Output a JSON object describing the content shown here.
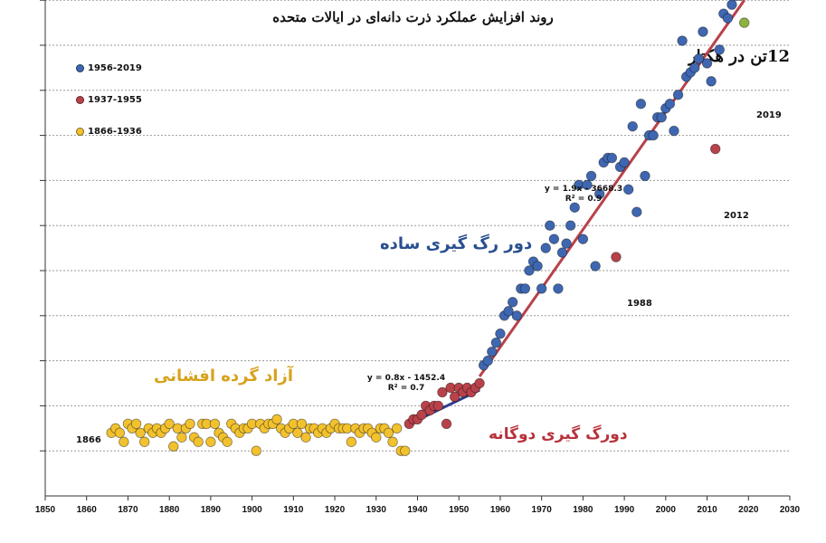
{
  "title": "روند افزایش عملکرد ذرت دانه‌ای در ایالات متحده",
  "unit_label": "12تن در هکتار",
  "legend": [
    {
      "label": "1956-2019",
      "color": "#3f67b1"
    },
    {
      "label": "1937-1955",
      "color": "#b8424a"
    },
    {
      "label": "1866-1936",
      "color": "#f2c12e"
    }
  ],
  "annotations": {
    "start_year": "1866",
    "point_1988": "1988",
    "point_2012": "2012",
    "point_2019": "2019",
    "open_pollination": "آزاد گرده افشانی",
    "double_cross": "دورگ گیری دوگانه",
    "single_cross": "دور رگ گیری ساده",
    "eq1_line1": "y = 0.8x - 1452.4",
    "eq1_line2": "R² = 0.7",
    "eq2_line1": "y = 1.9x - 3668.3",
    "eq2_line2": "R² = 0.9"
  },
  "chart_data": {
    "type": "scatter",
    "title": "روند افزایش عملکرد ذرت دانه‌ای در ایالات متحده",
    "xlabel": "",
    "ylabel": "تن در هکتار",
    "xlim": [
      1850,
      2030
    ],
    "ylim": [
      0,
      12
    ],
    "x_ticks": [
      1850,
      1860,
      1870,
      1880,
      1890,
      1900,
      1910,
      1920,
      1930,
      1940,
      1950,
      1960,
      1970,
      1980,
      1990,
      2000,
      2010,
      2020,
      2030
    ],
    "y_gridlines": [
      1,
      2,
      3,
      4,
      5,
      6,
      7,
      8,
      9,
      10,
      11,
      12
    ],
    "grid": true,
    "legend_position": "top-left",
    "series": [
      {
        "name": "1866-1936",
        "color": "#f2c12e",
        "points": [
          [
            1866,
            1.4
          ],
          [
            1867,
            1.5
          ],
          [
            1868,
            1.4
          ],
          [
            1869,
            1.2
          ],
          [
            1870,
            1.6
          ],
          [
            1871,
            1.5
          ],
          [
            1872,
            1.6
          ],
          [
            1873,
            1.4
          ],
          [
            1874,
            1.2
          ],
          [
            1875,
            1.5
          ],
          [
            1876,
            1.4
          ],
          [
            1877,
            1.5
          ],
          [
            1878,
            1.4
          ],
          [
            1879,
            1.5
          ],
          [
            1880,
            1.6
          ],
          [
            1881,
            1.1
          ],
          [
            1882,
            1.5
          ],
          [
            1883,
            1.3
          ],
          [
            1884,
            1.5
          ],
          [
            1885,
            1.6
          ],
          [
            1886,
            1.3
          ],
          [
            1887,
            1.2
          ],
          [
            1888,
            1.6
          ],
          [
            1889,
            1.6
          ],
          [
            1890,
            1.2
          ],
          [
            1891,
            1.6
          ],
          [
            1892,
            1.4
          ],
          [
            1893,
            1.3
          ],
          [
            1894,
            1.2
          ],
          [
            1895,
            1.6
          ],
          [
            1896,
            1.5
          ],
          [
            1897,
            1.4
          ],
          [
            1898,
            1.5
          ],
          [
            1899,
            1.5
          ],
          [
            1900,
            1.6
          ],
          [
            1901,
            1.0
          ],
          [
            1902,
            1.6
          ],
          [
            1903,
            1.5
          ],
          [
            1904,
            1.6
          ],
          [
            1905,
            1.6
          ],
          [
            1906,
            1.7
          ],
          [
            1907,
            1.5
          ],
          [
            1908,
            1.4
          ],
          [
            1909,
            1.5
          ],
          [
            1910,
            1.6
          ],
          [
            1911,
            1.4
          ],
          [
            1912,
            1.6
          ],
          [
            1913,
            1.3
          ],
          [
            1914,
            1.5
          ],
          [
            1915,
            1.5
          ],
          [
            1916,
            1.4
          ],
          [
            1917,
            1.5
          ],
          [
            1918,
            1.4
          ],
          [
            1919,
            1.5
          ],
          [
            1920,
            1.6
          ],
          [
            1921,
            1.5
          ],
          [
            1922,
            1.5
          ],
          [
            1923,
            1.5
          ],
          [
            1924,
            1.2
          ],
          [
            1925,
            1.5
          ],
          [
            1926,
            1.4
          ],
          [
            1927,
            1.5
          ],
          [
            1928,
            1.5
          ],
          [
            1929,
            1.4
          ],
          [
            1930,
            1.3
          ],
          [
            1931,
            1.5
          ],
          [
            1932,
            1.5
          ],
          [
            1933,
            1.4
          ],
          [
            1934,
            1.2
          ],
          [
            1935,
            1.5
          ],
          [
            1936,
            1.0
          ],
          [
            1937,
            1.0
          ]
        ],
        "y_unit": "t/ha"
      },
      {
        "name": "1937-1955",
        "color": "#b8424a",
        "points": [
          [
            1938,
            1.6
          ],
          [
            1939,
            1.7
          ],
          [
            1940,
            1.7
          ],
          [
            1941,
            1.8
          ],
          [
            1942,
            2.0
          ],
          [
            1943,
            1.9
          ],
          [
            1944,
            2.0
          ],
          [
            1945,
            2.0
          ],
          [
            1946,
            2.3
          ],
          [
            1947,
            1.6
          ],
          [
            1948,
            2.4
          ],
          [
            1949,
            2.2
          ],
          [
            1950,
            2.4
          ],
          [
            1951,
            2.3
          ],
          [
            1952,
            2.4
          ],
          [
            1953,
            2.3
          ],
          [
            1954,
            2.4
          ],
          [
            1955,
            2.5
          ]
        ],
        "y_unit": "t/ha"
      },
      {
        "name": "1956-2019",
        "color": "#3f67b1",
        "points": [
          [
            1956,
            2.9
          ],
          [
            1957,
            3.0
          ],
          [
            1958,
            3.2
          ],
          [
            1959,
            3.4
          ],
          [
            1960,
            3.6
          ],
          [
            1961,
            4.0
          ],
          [
            1962,
            4.1
          ],
          [
            1963,
            4.3
          ],
          [
            1964,
            4.0
          ],
          [
            1965,
            4.6
          ],
          [
            1966,
            4.6
          ],
          [
            1967,
            5.0
          ],
          [
            1968,
            5.2
          ],
          [
            1969,
            5.1
          ],
          [
            1970,
            4.6
          ],
          [
            1971,
            5.5
          ],
          [
            1972,
            6.0
          ],
          [
            1973,
            5.7
          ],
          [
            1974,
            4.6
          ],
          [
            1975,
            5.4
          ],
          [
            1976,
            5.6
          ],
          [
            1977,
            6.0
          ],
          [
            1978,
            6.4
          ],
          [
            1979,
            6.9
          ],
          [
            1980,
            5.7
          ],
          [
            1981,
            6.9
          ],
          [
            1982,
            7.1
          ],
          [
            1983,
            5.1
          ],
          [
            1984,
            6.7
          ],
          [
            1985,
            7.4
          ],
          [
            1986,
            7.5
          ],
          [
            1987,
            7.5
          ],
          [
            1988,
            5.3
          ],
          [
            1989,
            7.3
          ],
          [
            1990,
            7.4
          ],
          [
            1991,
            6.8
          ],
          [
            1992,
            8.2
          ],
          [
            1993,
            6.3
          ],
          [
            1994,
            8.7
          ],
          [
            1995,
            7.1
          ],
          [
            1996,
            8.0
          ],
          [
            1997,
            8.0
          ],
          [
            1998,
            8.4
          ],
          [
            1999,
            8.4
          ],
          [
            2000,
            8.6
          ],
          [
            2001,
            8.7
          ],
          [
            2002,
            8.1
          ],
          [
            2003,
            8.9
          ],
          [
            2004,
            10.1
          ],
          [
            2005,
            9.3
          ],
          [
            2006,
            9.4
          ],
          [
            2007,
            9.5
          ],
          [
            2008,
            9.7
          ],
          [
            2009,
            10.3
          ],
          [
            2010,
            9.6
          ],
          [
            2011,
            9.2
          ],
          [
            2012,
            7.7
          ],
          [
            2013,
            9.9
          ],
          [
            2014,
            10.7
          ],
          [
            2015,
            10.6
          ],
          [
            2016,
            10.9
          ],
          [
            2017,
            11.1
          ],
          [
            2018,
            11.1
          ],
          [
            2019,
            10.5
          ]
        ],
        "y_unit": "t/ha"
      }
    ],
    "highlighted_points": [
      {
        "year": 1988,
        "label": "1988",
        "color": "#b8424a"
      },
      {
        "year": 2012,
        "label": "2012",
        "color": "#b8424a"
      },
      {
        "year": 2019,
        "label": "2019",
        "color": "#8db33f"
      }
    ],
    "trend_lines": [
      {
        "name": "دورگ گیری دوگانه",
        "color": "#2f3f8f",
        "x": [
          1937,
          1955
        ],
        "equation": "y = 0.8x - 1452.4",
        "r2": "R² = 0.7"
      },
      {
        "name": "دور رگ گیری ساده",
        "color": "#b8424a",
        "x": [
          1955,
          2019
        ],
        "equation": "y = 1.9x - 3668.3",
        "r2": "R² = 0.9"
      }
    ],
    "region_labels": [
      {
        "text": "آزاد گرده افشانی",
        "color": "#d6a21c"
      },
      {
        "text": "دورگ گیری دوگانه",
        "color": "#b8323a"
      },
      {
        "text": "دور رگ گیری ساده",
        "color": "#2a4f8f"
      }
    ]
  }
}
